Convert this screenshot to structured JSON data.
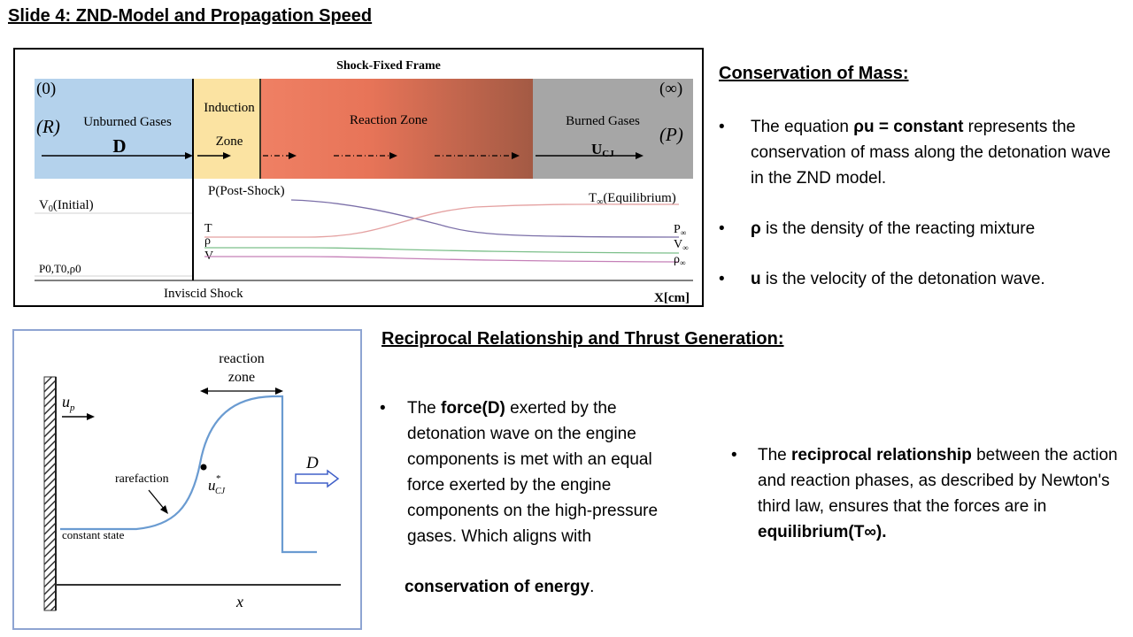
{
  "slide_title": "Slide 4: ZND-Model and Propagation Speed",
  "fig1": {
    "frame_title": "Shock-Fixed Frame",
    "state_0": "(0)",
    "state_r": "(R)",
    "state_inf": "(∞)",
    "state_p": "(P)",
    "unburned": "Unburned Gases",
    "d_label": "D",
    "induction_1": "Induction",
    "induction_2": "Zone",
    "reaction_zone": "Reaction Zone",
    "burned": "Burned Gases",
    "ucj_u": "U",
    "ucj_sub": "CJ",
    "post_shock": "P(Post-Shock)",
    "v0_main": "V",
    "v0_sub": "0",
    "v0_rest": "(Initial)",
    "t_eq_main": "T",
    "t_eq_sub": "∞",
    "t_eq_rest": "(Equilibrium)",
    "lbl_t": "T",
    "lbl_rho": "ρ",
    "lbl_v": "V",
    "p_inf": "P",
    "v_inf": "V",
    "rho_inf": "ρ",
    "inf_sub": "∞",
    "p0_line": "P0,T0,ρ0",
    "inviscid": "Inviscid Shock",
    "xcm": "X[cm]"
  },
  "fig2": {
    "reaction_1": "reaction",
    "reaction_2": "zone",
    "up_main": "u",
    "up_sub": "p",
    "d_label": "D",
    "rarefaction": "rarefaction",
    "ucj_main": "u",
    "ucj_sup": "*",
    "ucj_sub": "CJ",
    "constant_state": "constant state",
    "x_label": "x"
  },
  "mass": {
    "heading": "Conservation of Mass:",
    "b1_a": "The equation ",
    "b1_b": "ρu = constant",
    "b1_c": " represents the conservation of mass along the detonation wave in the ZND model.",
    "b2_b": "ρ",
    "b2_c": " is the density of the reacting mixture",
    "b3_b": "u",
    "b3_c": " is the velocity of the detonation wave."
  },
  "recip": {
    "heading": "Reciprocal Relationship and Thrust Generation:",
    "b1_a": "The ",
    "b1_b": "force(D)",
    "b1_c": " exerted by the detonation wave on the engine components is met with an equal force exerted by the engine components on the high-pressure gases. Which aligns with",
    "b1_d": "conservation of energy",
    "b1_e": ".",
    "b2_a": "The ",
    "b2_b": "reciprocal relationship",
    "b2_c": " between the action and reaction phases, as described by Newton's third law, ensures that the forces are in ",
    "b2_d": "equilibrium(T∞)."
  },
  "colors": {
    "unburned_fill": "#b4d2ec",
    "induction_fill": "#fbe3a2",
    "reaction_start": "#ef8064",
    "reaction_end": "#a35a44",
    "burned_fill": "#a6a6a6",
    "curve_blue": "#6a9bd1"
  }
}
